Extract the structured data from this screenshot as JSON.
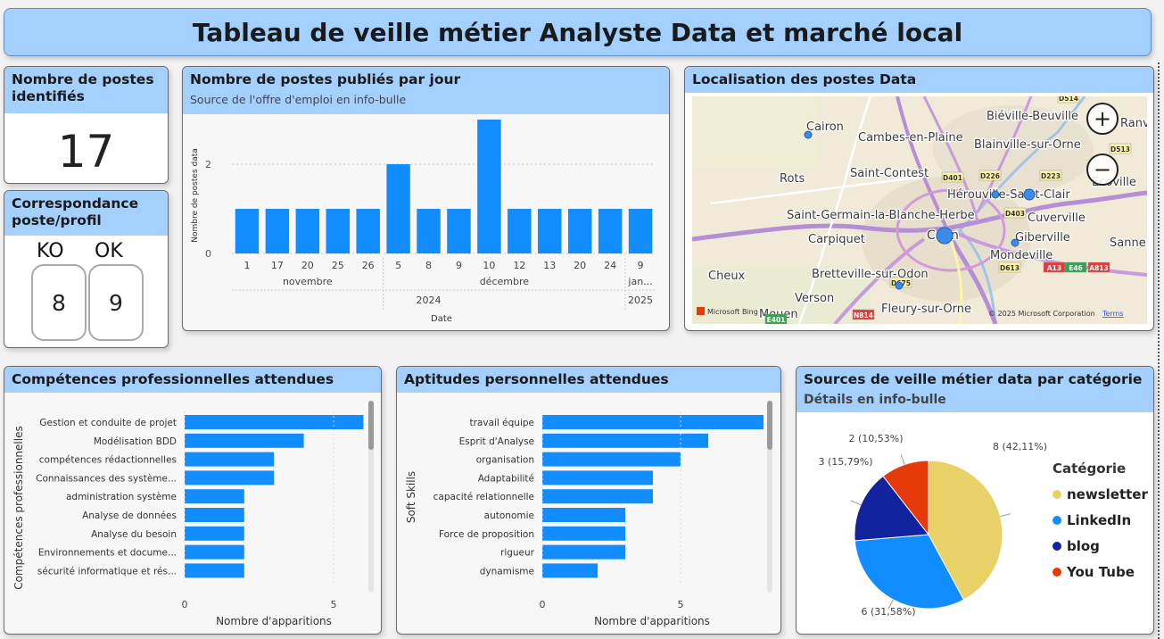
{
  "title": "Tableau de veille métier Analyste Data et marché local",
  "kpi_postes": {
    "title": "Nombre de postes identifiés",
    "value": "17"
  },
  "correspondance": {
    "title": "Correspondance poste/profil",
    "ko_label": "KO",
    "ok_label": "OK",
    "ko_value": "8",
    "ok_value": "9"
  },
  "daily": {
    "title": "Nombre de postes publiés par jour",
    "subtitle": "Source de l'offre d'emploi en info-bulle",
    "chart_data": {
      "type": "bar",
      "categories": [
        "1",
        "17",
        "20",
        "25",
        "26",
        "5",
        "8",
        "9",
        "10",
        "12",
        "13",
        "20",
        "24",
        "9"
      ],
      "values": [
        1,
        1,
        1,
        1,
        1,
        2,
        1,
        1,
        3,
        1,
        1,
        1,
        1,
        1
      ],
      "months": [
        "novembre",
        "décembre",
        "jan..."
      ],
      "years": [
        "2024",
        "2025"
      ],
      "xlabel": "Date",
      "ylabel": "Nombre de postes data",
      "yticks": [
        "0",
        "2"
      ],
      "color": "#118dff"
    }
  },
  "map": {
    "title": "Localisation des postes Data",
    "places": [
      "Biéville-Beuville",
      "Cairon",
      "Cambes-en-Plaine",
      "Blainville-sur-Orne",
      "Ranv",
      "Rots",
      "Saint-Contest",
      "Hérouville-Saint-Clair",
      "Saint-Germain-la-Blanche-Herbe",
      "Cuverville",
      "Carpiquet",
      "Caen",
      "Giberville",
      "Sannerv",
      "Mondeville",
      "Cheux",
      "Bretteville-sur-Odon",
      "Verson",
      "Mouen",
      "Fleury-sur-Orne",
      "Ecoville"
    ],
    "roads": [
      "D514",
      "D513",
      "D401",
      "D226",
      "D223",
      "D403",
      "D675",
      "D613",
      "A13",
      "E46",
      "A813",
      "N814",
      "E401"
    ],
    "attribution_left": "Microsoft Bing",
    "attribution_right": "© 2025 Microsoft Corporation",
    "terms": "Terms",
    "zoom_in": "+",
    "zoom_out": "−"
  },
  "competences": {
    "title": "Compétences professionnelles attendues",
    "chart_data": {
      "type": "bar",
      "categories": [
        "Gestion et conduite de projet",
        "Modélisation BDD",
        "compétences rédactionnelles",
        "Connaissances des système...",
        "administration système",
        "Analyse de données",
        "Analyse du besoin",
        "Environnements et docume...",
        "sécurité informatique et rés..."
      ],
      "values": [
        6,
        4,
        3,
        3,
        2,
        2,
        2,
        2,
        2
      ],
      "xlabel": "Nombre d'apparitions",
      "ylabel": "Compétences professionnelles",
      "xticks": [
        "0",
        "5"
      ],
      "color": "#118dff"
    }
  },
  "aptitudes": {
    "title": "Aptitudes personnelles attendues",
    "chart_data": {
      "type": "bar",
      "categories": [
        "travail équipe",
        "Esprit d'Analyse",
        "organisation",
        "Adaptabilité",
        "capacité relationnelle",
        "autonomie",
        "Force de proposition",
        "rigueur",
        "dynamisme"
      ],
      "values": [
        8,
        6,
        5,
        4,
        4,
        3,
        3,
        3,
        2
      ],
      "xlabel": "Nombre d'apparitions",
      "ylabel": "Soft Skills",
      "xticks": [
        "0",
        "5"
      ],
      "color": "#118dff"
    }
  },
  "sources": {
    "title": "Sources de veille métier data par catégorie",
    "subtitle": "Détails en info-bulle",
    "legend_title": "Catégorie",
    "chart_data": {
      "type": "pie",
      "labels": [
        "newsletter",
        "LinkedIn",
        "blog",
        "You Tube"
      ],
      "values": [
        8,
        6,
        3,
        2
      ],
      "slice_labels": [
        "8 (42,11%)",
        "6 (31,58%)",
        "3 (15,79%)",
        "2 (10,53%)"
      ],
      "colors": [
        "#e8d166",
        "#118dff",
        "#12239e",
        "#e63a0b"
      ]
    }
  }
}
